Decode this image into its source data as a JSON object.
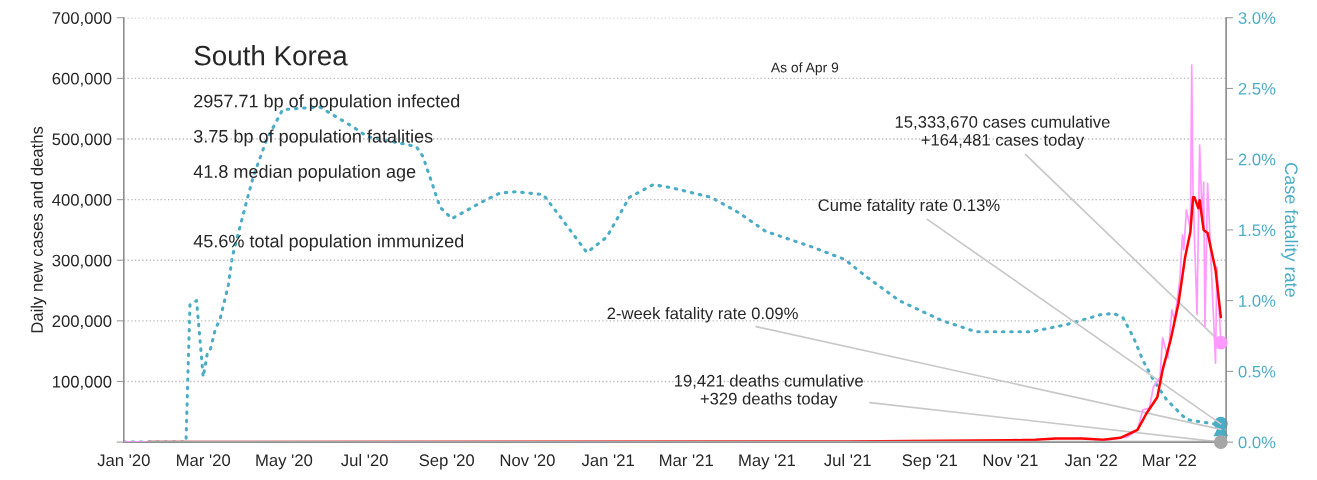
{
  "chart_data": {
    "type": "line",
    "title": "South Korea",
    "ylabel": "Daily new cases and deaths",
    "y2label": "Case fatality rate",
    "annotations": [
      "2957.71 bp of population infected",
      "3.75 bp of population fatalities",
      "41.8 median population age",
      "45.6% total population immunized",
      "As of Apr 9",
      {
        "text": "15,333,670 cases cumulative\n+164,481 cases today",
        "x": "2022-04-09",
        "y": 164000
      },
      {
        "text": "Cume fatality rate 0.13%",
        "x": "2022-04-09",
        "y": 30000
      },
      {
        "text": "2-week fatality rate 0.09%",
        "x": "2022-04-09",
        "y": 21000
      },
      {
        "text": "19,421 deaths cumulative\n+329 deaths today",
        "x": "2022-04-09",
        "y": 0
      }
    ],
    "xlim": [
      "2020-01-01",
      "2022-04-13"
    ],
    "xticks": [
      {
        "value": "2020-01-01",
        "label": "Jan '20"
      },
      {
        "value": "2020-03-01",
        "label": "Mar '20"
      },
      {
        "value": "2020-05-01",
        "label": "May '20"
      },
      {
        "value": "2020-07-01",
        "label": "Jul '20"
      },
      {
        "value": "2020-09-01",
        "label": "Sep '20"
      },
      {
        "value": "2020-11-01",
        "label": "Nov '20"
      },
      {
        "value": "2021-01-01",
        "label": "Jan '21"
      },
      {
        "value": "2021-03-01",
        "label": "Mar '21"
      },
      {
        "value": "2021-05-01",
        "label": "May '21"
      },
      {
        "value": "2021-07-01",
        "label": "Jul '21"
      },
      {
        "value": "2021-09-01",
        "label": "Sep '21"
      },
      {
        "value": "2021-11-01",
        "label": "Nov '21"
      },
      {
        "value": "2022-01-01",
        "label": "Jan '22"
      },
      {
        "value": "2022-03-01",
        "label": "Mar '22"
      }
    ],
    "ylim": [
      0,
      700000
    ],
    "yticks": [
      {
        "value": 0,
        "label": null
      },
      {
        "value": 100000,
        "label": "100,000"
      },
      {
        "value": 200000,
        "label": "200,000"
      },
      {
        "value": 300000,
        "label": "300,000"
      },
      {
        "value": 400000,
        "label": "400,000"
      },
      {
        "value": 500000,
        "label": "500,000"
      },
      {
        "value": 600000,
        "label": "600,000"
      },
      {
        "value": 700000,
        "label": "700,000"
      }
    ],
    "y2lim": [
      0,
      3.0
    ],
    "y2ticks": [
      {
        "value": 0,
        "label": "0.0%"
      },
      {
        "value": 0.5,
        "label": "0.5%"
      },
      {
        "value": 1.0,
        "label": "1.0%"
      },
      {
        "value": 1.5,
        "label": "1.5%"
      },
      {
        "value": 2.0,
        "label": "2.0%"
      },
      {
        "value": 2.5,
        "label": "2.5%"
      },
      {
        "value": 3.0,
        "label": "3.0%"
      }
    ],
    "grid": "y",
    "legend": false,
    "series": [
      {
        "color": "#4bacc6",
        "axis": "y2",
        "line_style": "dotted",
        "x": [
          "2020-01-01",
          "2020-02-17",
          "2020-02-20",
          "2020-02-25",
          "2020-03-01",
          "2020-03-04",
          "2020-03-06",
          "2020-03-10",
          "2020-03-14",
          "2020-03-20",
          "2020-03-23",
          "2020-04-03",
          "2020-04-08",
          "2020-04-18",
          "2020-04-30",
          "2020-05-28",
          "2020-06-22",
          "2020-07-03",
          "2020-08-09",
          "2020-08-14",
          "2020-08-22",
          "2020-08-27",
          "2020-09-05",
          "2020-09-26",
          "2020-10-11",
          "2020-10-23",
          "2020-11-13",
          "2020-11-26",
          "2020-12-16",
          "2020-12-31",
          "2021-01-17",
          "2021-02-04",
          "2021-02-17",
          "2021-03-20",
          "2021-04-10",
          "2021-04-30",
          "2021-06-04",
          "2021-06-29",
          "2021-07-15",
          "2021-08-09",
          "2021-09-10",
          "2021-10-06",
          "2021-11-02",
          "2021-11-17",
          "2021-12-13",
          "2022-01-08",
          "2022-01-18",
          "2022-01-25",
          "2022-02-02",
          "2022-02-09",
          "2022-02-17",
          "2022-02-27",
          "2022-03-14",
          "2022-04-09"
        ],
        "values": [
          0,
          0,
          0.97,
          1.0,
          0.46,
          0.62,
          0.64,
          0.79,
          0.88,
          1.11,
          1.31,
          1.71,
          1.88,
          2.14,
          2.35,
          2.37,
          2.23,
          2.16,
          2.09,
          2.02,
          1.8,
          1.66,
          1.58,
          1.69,
          1.76,
          1.77,
          1.75,
          1.59,
          1.34,
          1.45,
          1.73,
          1.82,
          1.8,
          1.73,
          1.62,
          1.49,
          1.38,
          1.29,
          1.17,
          1.0,
          0.86,
          0.78,
          0.78,
          0.78,
          0.83,
          0.9,
          0.91,
          0.88,
          0.74,
          0.58,
          0.44,
          0.3,
          0.16,
          0.12
        ]
      },
      {
        "color": "#ff99ff",
        "x": [
          "2020-01-01",
          "2021-12-31",
          "2022-01-15",
          "2022-01-23",
          "2022-01-28",
          "2022-02-05",
          "2022-02-09",
          "2022-02-14",
          "2022-02-17",
          "2022-02-22",
          "2022-02-24",
          "2022-02-28",
          "2022-03-03",
          "2022-03-05",
          "2022-03-09",
          "2022-03-11",
          "2022-03-12",
          "2022-03-14",
          "2022-03-17",
          "2022-03-18",
          "2022-03-19",
          "2022-03-22",
          "2022-03-24",
          "2022-03-26",
          "2022-03-27",
          "2022-03-28",
          "2022-03-30",
          "2022-04-05",
          "2022-04-06",
          "2022-04-09"
        ],
        "values": [
          0,
          0,
          4000,
          7000,
          8000,
          20000,
          53000,
          56000,
          91000,
          107000,
          172000,
          139000,
          218000,
          201000,
          267000,
          342000,
          317000,
          383000,
          350000,
          622000,
          411000,
          210000,
          490000,
          361000,
          429000,
          190000,
          427000,
          130000,
          289000,
          164000
        ]
      },
      {
        "color": "#ff0000",
        "x": [
          "2020-01-20",
          "2021-06-30",
          "2021-11-01",
          "2021-11-20",
          "2021-12-05",
          "2021-12-25",
          "2022-01-10",
          "2022-01-23",
          "2022-01-28",
          "2022-02-05",
          "2022-02-12",
          "2022-02-20",
          "2022-02-24",
          "2022-03-02",
          "2022-03-08",
          "2022-03-13",
          "2022-03-17",
          "2022-03-19",
          "2022-03-20",
          "2022-03-23",
          "2022-03-24",
          "2022-03-27",
          "2022-03-30",
          "2022-04-05",
          "2022-04-09"
        ],
        "values": [
          0,
          1000,
          3000,
          4000,
          6000,
          6000,
          4000,
          7000,
          12000,
          20000,
          48000,
          74000,
          119000,
          168000,
          229000,
          305000,
          347000,
          404000,
          404000,
          386000,
          399000,
          350000,
          345000,
          284000,
          206000
        ]
      },
      {
        "color": "#a6a6a6",
        "x": [
          "2020-01-20",
          "2022-04-09"
        ],
        "values": [
          0,
          0
        ]
      },
      {
        "type": "scatter",
        "color": "#ff99ff",
        "marker": "circle",
        "x": [
          "2022-04-09"
        ],
        "values": [
          164000
        ]
      },
      {
        "type": "scatter",
        "color": "#a6a6a6",
        "marker": "circle",
        "x": [
          "2022-04-09"
        ],
        "values": [
          0
        ]
      },
      {
        "type": "scatter",
        "color": "#4bacc6",
        "marker": "circle",
        "axis": "y2",
        "x": [
          "2022-04-09"
        ],
        "values": [
          0.13
        ]
      },
      {
        "type": "scatter",
        "color": "#4bacc6",
        "marker": "triangle",
        "axis": "y2",
        "x": [
          "2022-04-09"
        ],
        "values": [
          0.09
        ]
      }
    ]
  }
}
